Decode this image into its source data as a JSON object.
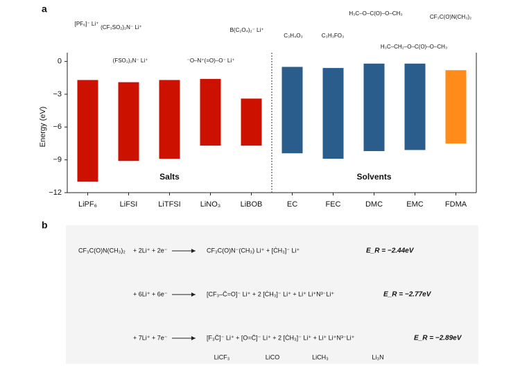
{
  "chart_data": {
    "type": "range_bar",
    "panel_label": "a",
    "y_label": "Energy (eV)",
    "categories": [
      "LiPF₆",
      "LiFSI",
      "LiTFSI",
      "LiNO₃",
      "LiBOB",
      "EC",
      "FEC",
      "DMC",
      "EMC",
      "FDMA"
    ],
    "values": [
      [
        -11.0,
        -1.7
      ],
      [
        -9.1,
        -1.9
      ],
      [
        -8.9,
        -1.7
      ],
      [
        -7.7,
        -1.6
      ],
      [
        -7.7,
        -3.4
      ],
      [
        -8.4,
        -0.5
      ],
      [
        -8.9,
        -0.6
      ],
      [
        -8.2,
        -0.2
      ],
      [
        -8.1,
        -0.2
      ],
      [
        -7.5,
        -0.8
      ]
    ],
    "colors": [
      "#cc1100",
      "#cc1100",
      "#cc1100",
      "#cc1100",
      "#cc1100",
      "#2b5d8c",
      "#2b5d8c",
      "#2b5d8c",
      "#2b5d8c",
      "#ff8c1a"
    ],
    "ylim": [
      -12,
      0.8
    ],
    "yticks": [
      {
        "value": -12,
        "label": "−12"
      },
      {
        "value": -9,
        "label": "−9"
      },
      {
        "value": -6,
        "label": "−6"
      },
      {
        "value": -3,
        "label": "−3"
      },
      0
    ],
    "group_labels": [
      "Salts",
      "Solvents"
    ],
    "structures": [
      "[PF₆]⁻ Li⁺",
      "(CF₃SO₂)₂N⁻ Li⁺",
      "(FSO₂)₂N⁻ Li⁺",
      "⁻O–N⁺(=O)–O⁻ Li⁺",
      "B(C₂O₄)₂⁻ Li⁺",
      "C₃H₄O₃",
      "C₃H₃FO₃",
      "H₃C–O–C(O)–O–CH₃",
      "H₃C–CH₂–O–C(O)–O–CH₃",
      "CF₃C(O)N(CH₃)₂"
    ]
  },
  "scheme": {
    "panel_label": "b",
    "reactant": "CF₃C(O)N(CH₃)₂",
    "rows": [
      {
        "reagents": "+ 2Li⁺ + 2e⁻",
        "products": "CF₃C(O)N⁻(CH₃) Li⁺  +  [ĊH₃]⁻ Li⁺",
        "energy": "E_R = −2.44eV"
      },
      {
        "reagents": "+ 6Li⁺ + 6e⁻",
        "products": "[CF₃–C̈=O]⁻ Li⁺  + 2 [ĊH₃]⁻ Li⁺  +  Li⁺ Li⁺N³⁻Li⁺",
        "energy": "E_R = −2.77eV"
      },
      {
        "reagents": "+ 7Li⁺ + 7e⁻",
        "products": "[F₃C̈]⁻ Li⁺  +  [O=C̈]⁻ Li⁺  + 2 [ĊH₃]⁻ Li⁺  +  Li⁺ Li⁺N³⁻Li⁺",
        "energy": "E_R = −2.89eV"
      }
    ],
    "product_labels": [
      "LiCF₃",
      "LiCO",
      "LiCH₃",
      "Li₃N"
    ]
  }
}
